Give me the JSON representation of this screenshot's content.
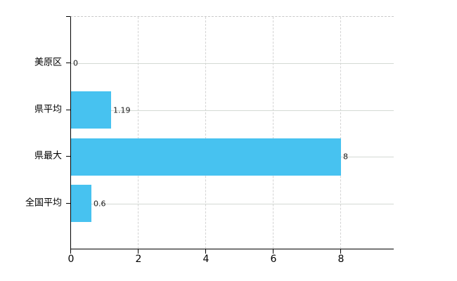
{
  "chart_data": {
    "type": "bar",
    "orientation": "horizontal",
    "title": "",
    "xlabel": "",
    "ylabel": "",
    "categories": [
      "美原区",
      "県平均",
      "県最大",
      "全国平均"
    ],
    "values": [
      0,
      1.19,
      8,
      0.6
    ],
    "value_labels": [
      "0",
      "1.19",
      "8",
      "0.6"
    ],
    "x_ticks": [
      0,
      2,
      4,
      6,
      8
    ],
    "xlim": [
      0,
      9.58
    ],
    "grid": "on",
    "legend": "none",
    "bar_color": "#47c2f0",
    "axis_color": "#000000",
    "h_gridline_color": "#d4d9d4",
    "v_gridline_color": "#d3d3d3",
    "top_border_color": "#c9c9c9",
    "text_color": "#000000",
    "value_label_color": "#1a1a1a"
  }
}
